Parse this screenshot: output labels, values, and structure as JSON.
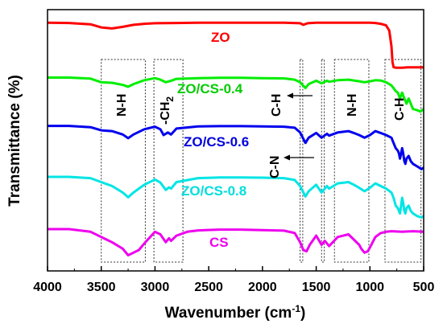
{
  "chart_data": {
    "type": "line",
    "xlabel": "Wavenumber (cm",
    "xlabel_sup": "-1",
    "xlabel_end": ")",
    "ylabel": "Transmittance (%)",
    "xlim": [
      4000,
      500
    ],
    "x_ticks": [
      4000,
      3500,
      3000,
      2500,
      2000,
      1500,
      1000,
      500
    ],
    "y_ticks_shown": false,
    "ylim": [
      0,
      1
    ],
    "legend": "inline labels",
    "series": [
      {
        "name": "ZO",
        "color": "#ff0000",
        "points": [
          [
            4000,
            0.95
          ],
          [
            3800,
            0.949
          ],
          [
            3600,
            0.944
          ],
          [
            3500,
            0.932
          ],
          [
            3400,
            0.928
          ],
          [
            3300,
            0.934
          ],
          [
            3200,
            0.942
          ],
          [
            3100,
            0.946
          ],
          [
            3000,
            0.948
          ],
          [
            2800,
            0.949
          ],
          [
            2600,
            0.95
          ],
          [
            2400,
            0.95
          ],
          [
            2200,
            0.95
          ],
          [
            2000,
            0.95
          ],
          [
            1800,
            0.95
          ],
          [
            1650,
            0.948
          ],
          [
            1620,
            0.942
          ],
          [
            1580,
            0.948
          ],
          [
            1500,
            0.95
          ],
          [
            1300,
            0.95
          ],
          [
            1100,
            0.95
          ],
          [
            1000,
            0.95
          ],
          [
            950,
            0.949
          ],
          [
            900,
            0.946
          ],
          [
            850,
            0.94
          ],
          [
            820,
            0.92
          ],
          [
            800,
            0.86
          ],
          [
            790,
            0.8
          ],
          [
            780,
            0.78
          ],
          [
            760,
            0.778
          ],
          [
            700,
            0.778
          ],
          [
            650,
            0.779
          ],
          [
            600,
            0.779
          ],
          [
            550,
            0.779
          ],
          [
            520,
            0.779
          ],
          [
            500,
            0.779
          ]
        ]
      },
      {
        "name": "ZO/CS-0.4",
        "color": "#00ee00",
        "points": [
          [
            4000,
            0.74
          ],
          [
            3800,
            0.74
          ],
          [
            3600,
            0.736
          ],
          [
            3500,
            0.722
          ],
          [
            3400,
            0.72
          ],
          [
            3300,
            0.712
          ],
          [
            3250,
            0.705
          ],
          [
            3200,
            0.715
          ],
          [
            3100,
            0.73
          ],
          [
            3000,
            0.738
          ],
          [
            2950,
            0.732
          ],
          [
            2900,
            0.722
          ],
          [
            2850,
            0.728
          ],
          [
            2800,
            0.735
          ],
          [
            2600,
            0.738
          ],
          [
            2400,
            0.739
          ],
          [
            2200,
            0.739
          ],
          [
            2000,
            0.738
          ],
          [
            1800,
            0.737
          ],
          [
            1700,
            0.732
          ],
          [
            1650,
            0.722
          ],
          [
            1600,
            0.7
          ],
          [
            1570,
            0.715
          ],
          [
            1500,
            0.728
          ],
          [
            1450,
            0.718
          ],
          [
            1400,
            0.728
          ],
          [
            1380,
            0.724
          ],
          [
            1300,
            0.73
          ],
          [
            1200,
            0.732
          ],
          [
            1100,
            0.726
          ],
          [
            1050,
            0.722
          ],
          [
            1000,
            0.726
          ],
          [
            950,
            0.73
          ],
          [
            900,
            0.729
          ],
          [
            850,
            0.722
          ],
          [
            820,
            0.715
          ],
          [
            800,
            0.71
          ],
          [
            780,
            0.7
          ],
          [
            760,
            0.688
          ],
          [
            740,
            0.682
          ],
          [
            720,
            0.66
          ],
          [
            700,
            0.682
          ],
          [
            680,
            0.66
          ],
          [
            660,
            0.64
          ],
          [
            640,
            0.66
          ],
          [
            620,
            0.64
          ],
          [
            600,
            0.62
          ],
          [
            560,
            0.615
          ],
          [
            530,
            0.61
          ],
          [
            500,
            0.62
          ]
        ]
      },
      {
        "name": "ZO/CS-0.6",
        "color": "#0000ee",
        "points": [
          [
            4000,
            0.555
          ],
          [
            3800,
            0.555
          ],
          [
            3600,
            0.55
          ],
          [
            3500,
            0.538
          ],
          [
            3400,
            0.535
          ],
          [
            3300,
            0.522
          ],
          [
            3250,
            0.508
          ],
          [
            3200,
            0.522
          ],
          [
            3100,
            0.542
          ],
          [
            3000,
            0.552
          ],
          [
            2950,
            0.542
          ],
          [
            2920,
            0.52
          ],
          [
            2880,
            0.53
          ],
          [
            2850,
            0.522
          ],
          [
            2800,
            0.545
          ],
          [
            2600,
            0.553
          ],
          [
            2400,
            0.554
          ],
          [
            2200,
            0.554
          ],
          [
            2000,
            0.553
          ],
          [
            1800,
            0.552
          ],
          [
            1700,
            0.548
          ],
          [
            1650,
            0.53
          ],
          [
            1600,
            0.49
          ],
          [
            1570,
            0.51
          ],
          [
            1500,
            0.528
          ],
          [
            1450,
            0.51
          ],
          [
            1400,
            0.525
          ],
          [
            1380,
            0.518
          ],
          [
            1300,
            0.53
          ],
          [
            1200,
            0.535
          ],
          [
            1150,
            0.528
          ],
          [
            1100,
            0.52
          ],
          [
            1050,
            0.51
          ],
          [
            1000,
            0.52
          ],
          [
            950,
            0.535
          ],
          [
            900,
            0.528
          ],
          [
            850,
            0.52
          ],
          [
            800,
            0.51
          ],
          [
            780,
            0.49
          ],
          [
            760,
            0.47
          ],
          [
            740,
            0.46
          ],
          [
            730,
            0.45
          ],
          [
            720,
            0.43
          ],
          [
            710,
            0.45
          ],
          [
            700,
            0.47
          ],
          [
            690,
            0.45
          ],
          [
            680,
            0.42
          ],
          [
            670,
            0.41
          ],
          [
            660,
            0.43
          ],
          [
            640,
            0.44
          ],
          [
            620,
            0.42
          ],
          [
            600,
            0.41
          ],
          [
            560,
            0.4
          ],
          [
            520,
            0.39
          ],
          [
            500,
            0.395
          ]
        ]
      },
      {
        "name": "ZO/CS-0.8",
        "color": "#00e5e5",
        "points": [
          [
            4000,
            0.36
          ],
          [
            3800,
            0.36
          ],
          [
            3600,
            0.355
          ],
          [
            3500,
            0.34
          ],
          [
            3400,
            0.325
          ],
          [
            3300,
            0.3
          ],
          [
            3250,
            0.282
          ],
          [
            3200,
            0.3
          ],
          [
            3100,
            0.33
          ],
          [
            3000,
            0.35
          ],
          [
            2950,
            0.338
          ],
          [
            2900,
            0.31
          ],
          [
            2870,
            0.32
          ],
          [
            2850,
            0.315
          ],
          [
            2800,
            0.34
          ],
          [
            2600,
            0.355
          ],
          [
            2400,
            0.358
          ],
          [
            2200,
            0.358
          ],
          [
            2000,
            0.357
          ],
          [
            1800,
            0.355
          ],
          [
            1700,
            0.348
          ],
          [
            1650,
            0.325
          ],
          [
            1600,
            0.285
          ],
          [
            1570,
            0.305
          ],
          [
            1500,
            0.33
          ],
          [
            1450,
            0.3
          ],
          [
            1400,
            0.325
          ],
          [
            1380,
            0.315
          ],
          [
            1300,
            0.335
          ],
          [
            1200,
            0.34
          ],
          [
            1150,
            0.33
          ],
          [
            1100,
            0.318
          ],
          [
            1050,
            0.305
          ],
          [
            1000,
            0.318
          ],
          [
            950,
            0.335
          ],
          [
            900,
            0.325
          ],
          [
            850,
            0.315
          ],
          [
            800,
            0.3
          ],
          [
            780,
            0.28
          ],
          [
            760,
            0.25
          ],
          [
            740,
            0.24
          ],
          [
            730,
            0.23
          ],
          [
            720,
            0.22
          ],
          [
            710,
            0.25
          ],
          [
            700,
            0.28
          ],
          [
            690,
            0.26
          ],
          [
            680,
            0.23
          ],
          [
            670,
            0.22
          ],
          [
            660,
            0.24
          ],
          [
            640,
            0.25
          ],
          [
            620,
            0.23
          ],
          [
            600,
            0.22
          ],
          [
            560,
            0.21
          ],
          [
            520,
            0.205
          ],
          [
            500,
            0.21
          ]
        ]
      },
      {
        "name": "CS",
        "color": "#ee00ee",
        "points": [
          [
            4000,
            0.16
          ],
          [
            3800,
            0.16
          ],
          [
            3600,
            0.15
          ],
          [
            3500,
            0.13
          ],
          [
            3400,
            0.11
          ],
          [
            3300,
            0.085
          ],
          [
            3250,
            0.06
          ],
          [
            3200,
            0.07
          ],
          [
            3150,
            0.08
          ],
          [
            3100,
            0.105
          ],
          [
            3000,
            0.15
          ],
          [
            2950,
            0.14
          ],
          [
            2900,
            0.11
          ],
          [
            2870,
            0.125
          ],
          [
            2850,
            0.115
          ],
          [
            2800,
            0.135
          ],
          [
            2700,
            0.15
          ],
          [
            2600,
            0.155
          ],
          [
            2400,
            0.158
          ],
          [
            2200,
            0.158
          ],
          [
            2000,
            0.156
          ],
          [
            1800,
            0.154
          ],
          [
            1700,
            0.145
          ],
          [
            1650,
            0.11
          ],
          [
            1620,
            0.08
          ],
          [
            1590,
            0.075
          ],
          [
            1560,
            0.1
          ],
          [
            1500,
            0.135
          ],
          [
            1450,
            0.1
          ],
          [
            1420,
            0.115
          ],
          [
            1380,
            0.095
          ],
          [
            1300,
            0.13
          ],
          [
            1200,
            0.14
          ],
          [
            1150,
            0.12
          ],
          [
            1100,
            0.1
          ],
          [
            1080,
            0.085
          ],
          [
            1050,
            0.07
          ],
          [
            1020,
            0.075
          ],
          [
            1000,
            0.09
          ],
          [
            950,
            0.13
          ],
          [
            900,
            0.145
          ],
          [
            850,
            0.15
          ],
          [
            800,
            0.152
          ],
          [
            700,
            0.15
          ],
          [
            600,
            0.152
          ],
          [
            500,
            0.15
          ]
        ]
      }
    ],
    "annotations": [
      "N-H",
      "-CH",
      "2",
      "C-H",
      "C-N",
      "N-H",
      "C-H"
    ]
  }
}
